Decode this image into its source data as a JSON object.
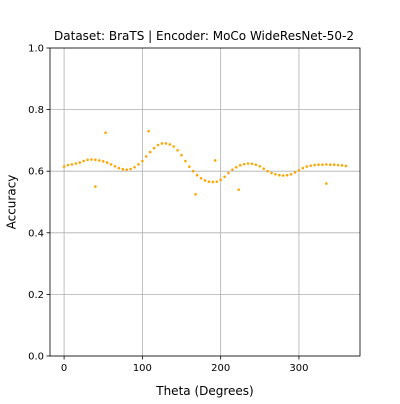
{
  "chart_data": {
    "type": "scatter",
    "title": "Dataset: BraTS | Encoder: MoCo WideResNet-50-2",
    "xlabel": "Theta (Degrees)",
    "ylabel": "Accuracy",
    "color": "#ffa500",
    "grid": true,
    "xlim": [
      -18,
      378
    ],
    "ylim": [
      0,
      1
    ],
    "xticks": [
      0,
      100,
      200,
      300
    ],
    "yticks": [
      {
        "value": 0,
        "label": "0.0"
      },
      0.2,
      0.4,
      0.6,
      0.8,
      {
        "value": 1,
        "label": "1.0"
      }
    ],
    "x": [
      0,
      5,
      10,
      15,
      20,
      25,
      30,
      35,
      40,
      45,
      50,
      55,
      60,
      65,
      70,
      75,
      80,
      85,
      90,
      95,
      100,
      105,
      110,
      115,
      120,
      125,
      130,
      135,
      140,
      145,
      150,
      155,
      160,
      165,
      170,
      175,
      180,
      185,
      190,
      195,
      200,
      205,
      210,
      215,
      220,
      225,
      230,
      235,
      240,
      245,
      250,
      255,
      260,
      265,
      270,
      275,
      280,
      285,
      290,
      295,
      300,
      305,
      310,
      315,
      320,
      325,
      330,
      335,
      340,
      345,
      350,
      355,
      360,
      40,
      53,
      108,
      168,
      193,
      223,
      335
    ],
    "values": [
      0.615,
      0.62,
      0.622,
      0.625,
      0.628,
      0.633,
      0.637,
      0.638,
      0.637,
      0.635,
      0.632,
      0.628,
      0.622,
      0.616,
      0.61,
      0.606,
      0.605,
      0.607,
      0.613,
      0.622,
      0.633,
      0.648,
      0.662,
      0.675,
      0.685,
      0.69,
      0.69,
      0.687,
      0.68,
      0.668,
      0.652,
      0.633,
      0.615,
      0.6,
      0.587,
      0.577,
      0.57,
      0.566,
      0.565,
      0.566,
      0.572,
      0.582,
      0.594,
      0.605,
      0.613,
      0.619,
      0.623,
      0.625,
      0.624,
      0.621,
      0.616,
      0.608,
      0.6,
      0.594,
      0.59,
      0.587,
      0.586,
      0.587,
      0.59,
      0.596,
      0.603,
      0.61,
      0.615,
      0.618,
      0.62,
      0.621,
      0.621,
      0.622,
      0.621,
      0.621,
      0.62,
      0.619,
      0.617,
      0.55,
      0.725,
      0.73,
      0.525,
      0.635,
      0.54,
      0.56
    ]
  }
}
